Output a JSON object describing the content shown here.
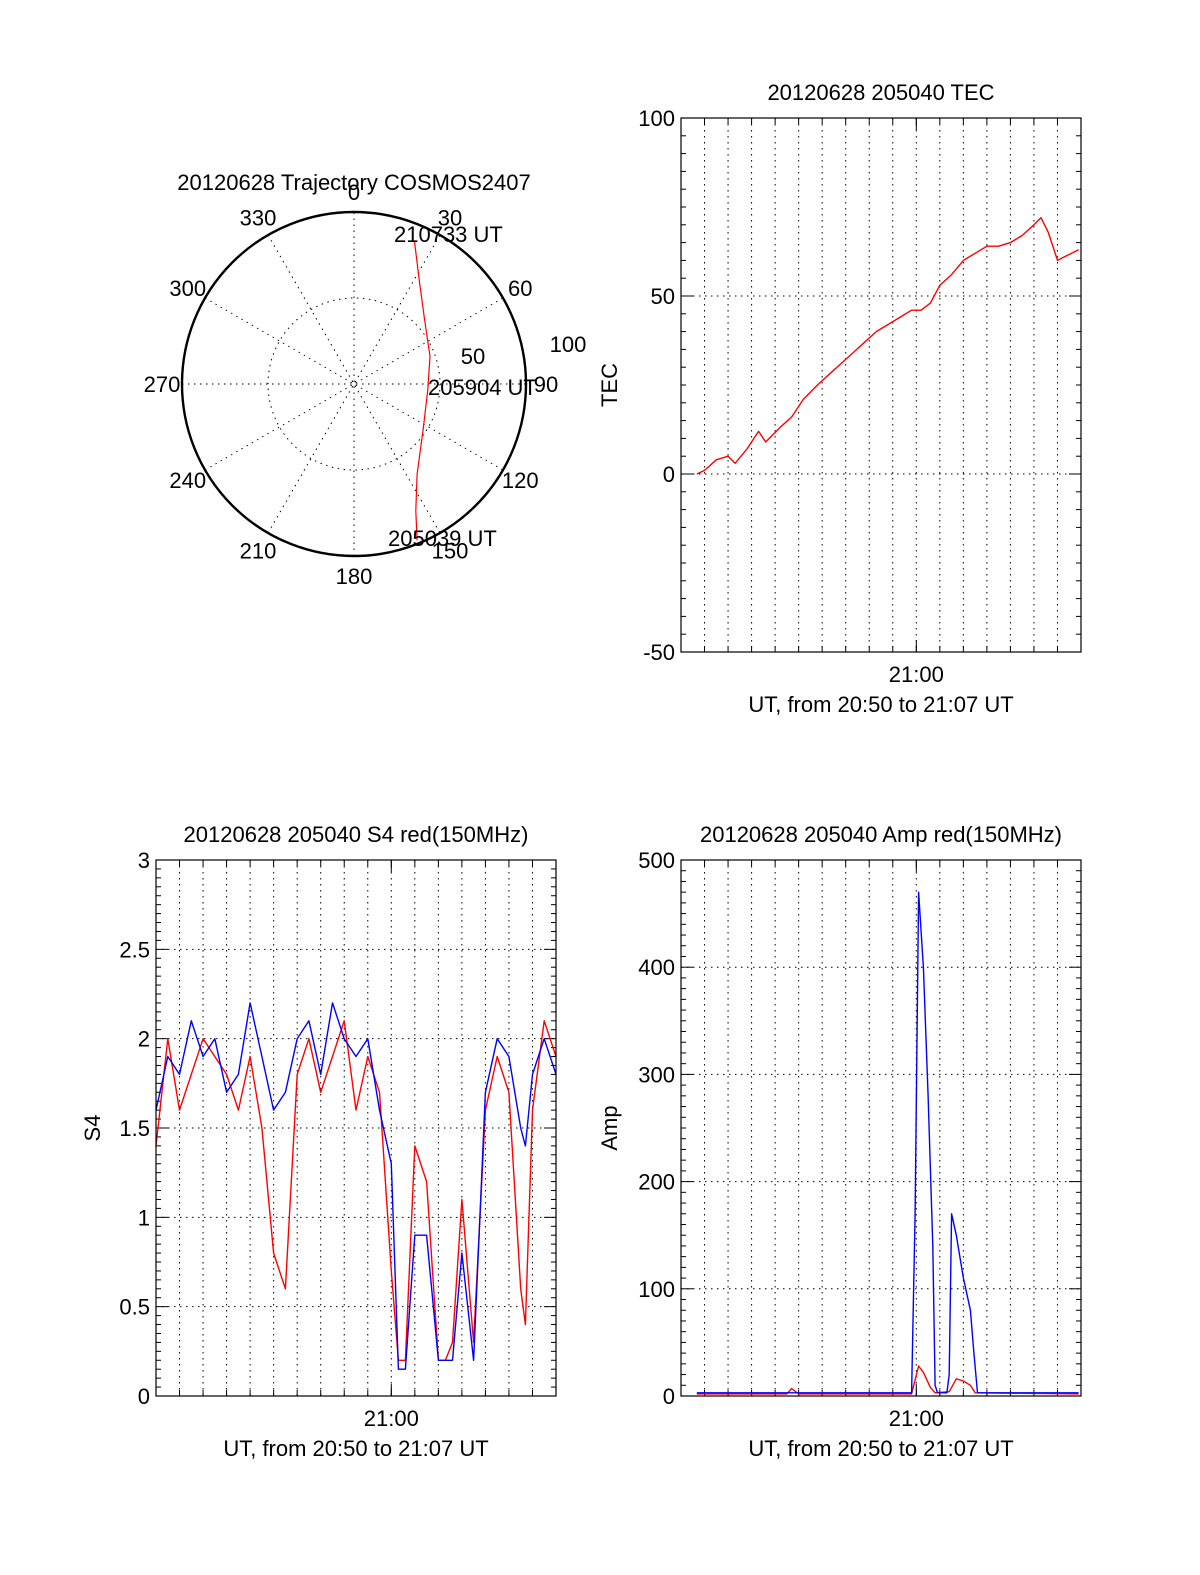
{
  "colors": {
    "red": "#ff0000",
    "blue": "#0000ff",
    "axis": "#000000"
  },
  "chart_data": [
    {
      "type": "polar",
      "title": "20120628 Trajectory COSMOS2407",
      "angle_labels": [
        "0",
        "30",
        "60",
        "90",
        "120",
        "150",
        "180",
        "210",
        "240",
        "270",
        "300",
        "330"
      ],
      "radial_labels": [
        "50",
        "100"
      ],
      "rlim": [
        0,
        100
      ],
      "trajectory": [
        [
          158,
          98
        ],
        [
          154,
          82
        ],
        [
          145,
          64
        ],
        [
          123,
          48
        ],
        [
          95,
          43
        ],
        [
          70,
          47
        ],
        [
          47,
          56
        ],
        [
          33,
          70
        ],
        [
          23,
          90
        ]
      ],
      "annotations": {
        "start": "205039 UT",
        "mid": "205904 UT",
        "end": "210733 UT"
      }
    },
    {
      "type": "line",
      "title": "20120628 205040 TEC",
      "xlabel": "UT, from 20:50 to 21:07 UT",
      "ylabel": "TEC",
      "xlim": [
        0,
        17
      ],
      "ylim": [
        -50,
        100
      ],
      "yticks": [
        -50,
        0,
        50,
        100
      ],
      "xticks": [
        {
          "value": 10,
          "label": "21:00"
        }
      ],
      "grid": true,
      "series": [
        {
          "color": "#ff0000",
          "x": [
            0.67,
            1.0,
            1.5,
            2.0,
            2.3,
            2.8,
            3.3,
            3.6,
            4.2,
            4.7,
            5.2,
            5.8,
            6.3,
            6.8,
            7.3,
            7.8,
            8.3,
            8.8,
            9.3,
            9.8,
            10.2,
            10.6,
            11.0,
            11.5,
            12.0,
            12.5,
            13.0,
            13.5,
            14.0,
            14.5,
            15.0,
            15.3,
            15.6,
            16.0,
            16.3,
            16.6,
            16.9
          ],
          "y": [
            0,
            1,
            4,
            5,
            3,
            7,
            12,
            9,
            13,
            16,
            21,
            25,
            28,
            31,
            34,
            37,
            40,
            42,
            44,
            46,
            46,
            48,
            53,
            56,
            60,
            62,
            64,
            64,
            65,
            67,
            70,
            72,
            68,
            60,
            61,
            62,
            63
          ]
        }
      ]
    },
    {
      "type": "line",
      "title": "20120628 205040 S4 red(150MHz)",
      "xlabel": "UT, from 20:50 to 21:07 UT",
      "ylabel": "S4",
      "xlim": [
        0,
        17
      ],
      "ylim": [
        0,
        3
      ],
      "yticks": [
        0,
        0.5,
        1,
        1.5,
        2,
        2.5,
        3
      ],
      "ytick_labels": [
        "0",
        "0.5",
        "1",
        "1.5",
        "2",
        "2.5",
        "3"
      ],
      "xticks": [
        {
          "value": 10,
          "label": "21:00"
        }
      ],
      "grid": true,
      "series": [
        {
          "color": "#ff0000",
          "x": [
            0.0,
            0.5,
            1.0,
            1.5,
            2.0,
            2.5,
            3.0,
            3.5,
            4.0,
            4.5,
            5.0,
            5.5,
            6.0,
            6.5,
            7.0,
            7.5,
            8.0,
            8.5,
            9.0,
            9.5,
            10.0,
            10.3,
            10.6,
            11.0,
            11.5,
            12.0,
            12.3,
            12.6,
            13.0,
            13.5,
            14.0,
            14.5,
            15.0,
            15.5,
            15.7,
            16.0,
            16.5,
            17.0
          ],
          "y": [
            1.4,
            2.0,
            1.6,
            1.8,
            2.0,
            1.9,
            1.8,
            1.6,
            1.9,
            1.5,
            0.8,
            0.6,
            1.8,
            2.0,
            1.7,
            1.9,
            2.1,
            1.6,
            1.9,
            1.7,
            0.7,
            0.2,
            0.2,
            1.4,
            1.2,
            0.2,
            0.2,
            0.3,
            1.1,
            0.3,
            1.6,
            1.9,
            1.7,
            0.6,
            0.4,
            1.6,
            2.1,
            1.9
          ]
        },
        {
          "color": "#0000ff",
          "x": [
            0.0,
            0.5,
            1.0,
            1.5,
            2.0,
            2.5,
            3.0,
            3.5,
            4.0,
            4.5,
            5.0,
            5.5,
            6.0,
            6.5,
            7.0,
            7.5,
            8.0,
            8.5,
            9.0,
            9.5,
            10.0,
            10.3,
            10.6,
            11.0,
            11.5,
            12.0,
            12.3,
            12.6,
            13.0,
            13.5,
            14.0,
            14.5,
            15.0,
            15.5,
            15.7,
            16.0,
            16.5,
            17.0
          ],
          "y": [
            1.6,
            1.9,
            1.8,
            2.1,
            1.9,
            2.0,
            1.7,
            1.8,
            2.2,
            1.9,
            1.6,
            1.7,
            2.0,
            2.1,
            1.8,
            2.2,
            2.0,
            1.9,
            2.0,
            1.6,
            1.3,
            0.15,
            0.15,
            0.9,
            0.9,
            0.2,
            0.2,
            0.2,
            0.8,
            0.2,
            1.7,
            2.0,
            1.9,
            1.5,
            1.4,
            1.8,
            2.0,
            1.8
          ]
        }
      ]
    },
    {
      "type": "line",
      "title": "20120628 205040 Amp red(150MHz)",
      "xlabel": "UT, from 20:50 to 21:07 UT",
      "ylabel": "Amp",
      "xlim": [
        0,
        17
      ],
      "ylim": [
        0,
        500
      ],
      "yticks": [
        0,
        100,
        200,
        300,
        400,
        500
      ],
      "xticks": [
        {
          "value": 10,
          "label": "21:00"
        }
      ],
      "grid": true,
      "series": [
        {
          "color": "#ff0000",
          "x": [
            0.67,
            4.5,
            4.7,
            5.0,
            9.8,
            10.1,
            10.3,
            10.6,
            10.8,
            11.4,
            11.7,
            12.0,
            12.3,
            12.5,
            16.9
          ],
          "y": [
            2,
            2,
            7,
            2,
            2,
            28,
            22,
            8,
            3,
            4,
            16,
            14,
            10,
            3,
            2
          ]
        },
        {
          "color": "#0000ff",
          "x": [
            0.67,
            9.8,
            9.95,
            10.1,
            10.3,
            10.5,
            10.7,
            10.8,
            10.9,
            11.1,
            11.3,
            11.4,
            11.5,
            11.7,
            12.0,
            12.3,
            12.45,
            12.6,
            16.9
          ],
          "y": [
            3,
            3,
            170,
            470,
            400,
            280,
            140,
            10,
            3,
            3,
            3,
            20,
            170,
            150,
            110,
            80,
            40,
            3,
            3
          ]
        }
      ]
    }
  ]
}
